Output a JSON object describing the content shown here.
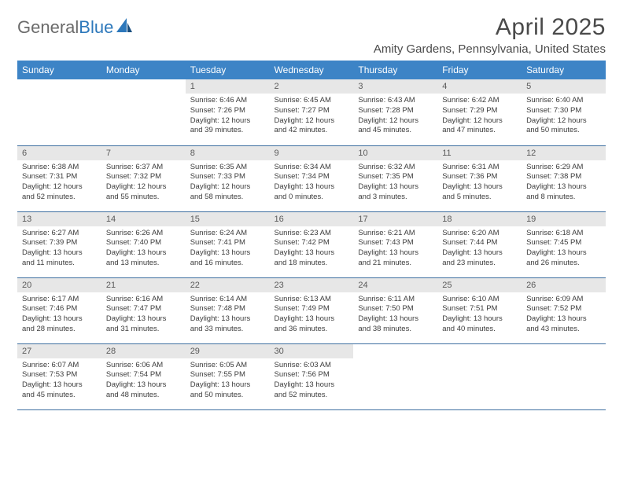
{
  "brand": {
    "part1": "General",
    "part2": "Blue"
  },
  "title": "April 2025",
  "location": "Amity Gardens, Pennsylvania, United States",
  "colors": {
    "header_bg": "#3d84c6",
    "header_fg": "#ffffff",
    "daynum_bg": "#e7e7e7",
    "row_border": "#3d6ea0",
    "text": "#3c3c3c"
  },
  "weekdays": [
    "Sunday",
    "Monday",
    "Tuesday",
    "Wednesday",
    "Thursday",
    "Friday",
    "Saturday"
  ],
  "cells": [
    {
      "n": "",
      "sr": "",
      "ss": "",
      "dl": "",
      "empty": true
    },
    {
      "n": "",
      "sr": "",
      "ss": "",
      "dl": "",
      "empty": true
    },
    {
      "n": "1",
      "sr": "Sunrise: 6:46 AM",
      "ss": "Sunset: 7:26 PM",
      "dl": "Daylight: 12 hours and 39 minutes."
    },
    {
      "n": "2",
      "sr": "Sunrise: 6:45 AM",
      "ss": "Sunset: 7:27 PM",
      "dl": "Daylight: 12 hours and 42 minutes."
    },
    {
      "n": "3",
      "sr": "Sunrise: 6:43 AM",
      "ss": "Sunset: 7:28 PM",
      "dl": "Daylight: 12 hours and 45 minutes."
    },
    {
      "n": "4",
      "sr": "Sunrise: 6:42 AM",
      "ss": "Sunset: 7:29 PM",
      "dl": "Daylight: 12 hours and 47 minutes."
    },
    {
      "n": "5",
      "sr": "Sunrise: 6:40 AM",
      "ss": "Sunset: 7:30 PM",
      "dl": "Daylight: 12 hours and 50 minutes."
    },
    {
      "n": "6",
      "sr": "Sunrise: 6:38 AM",
      "ss": "Sunset: 7:31 PM",
      "dl": "Daylight: 12 hours and 52 minutes."
    },
    {
      "n": "7",
      "sr": "Sunrise: 6:37 AM",
      "ss": "Sunset: 7:32 PM",
      "dl": "Daylight: 12 hours and 55 minutes."
    },
    {
      "n": "8",
      "sr": "Sunrise: 6:35 AM",
      "ss": "Sunset: 7:33 PM",
      "dl": "Daylight: 12 hours and 58 minutes."
    },
    {
      "n": "9",
      "sr": "Sunrise: 6:34 AM",
      "ss": "Sunset: 7:34 PM",
      "dl": "Daylight: 13 hours and 0 minutes."
    },
    {
      "n": "10",
      "sr": "Sunrise: 6:32 AM",
      "ss": "Sunset: 7:35 PM",
      "dl": "Daylight: 13 hours and 3 minutes."
    },
    {
      "n": "11",
      "sr": "Sunrise: 6:31 AM",
      "ss": "Sunset: 7:36 PM",
      "dl": "Daylight: 13 hours and 5 minutes."
    },
    {
      "n": "12",
      "sr": "Sunrise: 6:29 AM",
      "ss": "Sunset: 7:38 PM",
      "dl": "Daylight: 13 hours and 8 minutes."
    },
    {
      "n": "13",
      "sr": "Sunrise: 6:27 AM",
      "ss": "Sunset: 7:39 PM",
      "dl": "Daylight: 13 hours and 11 minutes."
    },
    {
      "n": "14",
      "sr": "Sunrise: 6:26 AM",
      "ss": "Sunset: 7:40 PM",
      "dl": "Daylight: 13 hours and 13 minutes."
    },
    {
      "n": "15",
      "sr": "Sunrise: 6:24 AM",
      "ss": "Sunset: 7:41 PM",
      "dl": "Daylight: 13 hours and 16 minutes."
    },
    {
      "n": "16",
      "sr": "Sunrise: 6:23 AM",
      "ss": "Sunset: 7:42 PM",
      "dl": "Daylight: 13 hours and 18 minutes."
    },
    {
      "n": "17",
      "sr": "Sunrise: 6:21 AM",
      "ss": "Sunset: 7:43 PM",
      "dl": "Daylight: 13 hours and 21 minutes."
    },
    {
      "n": "18",
      "sr": "Sunrise: 6:20 AM",
      "ss": "Sunset: 7:44 PM",
      "dl": "Daylight: 13 hours and 23 minutes."
    },
    {
      "n": "19",
      "sr": "Sunrise: 6:18 AM",
      "ss": "Sunset: 7:45 PM",
      "dl": "Daylight: 13 hours and 26 minutes."
    },
    {
      "n": "20",
      "sr": "Sunrise: 6:17 AM",
      "ss": "Sunset: 7:46 PM",
      "dl": "Daylight: 13 hours and 28 minutes."
    },
    {
      "n": "21",
      "sr": "Sunrise: 6:16 AM",
      "ss": "Sunset: 7:47 PM",
      "dl": "Daylight: 13 hours and 31 minutes."
    },
    {
      "n": "22",
      "sr": "Sunrise: 6:14 AM",
      "ss": "Sunset: 7:48 PM",
      "dl": "Daylight: 13 hours and 33 minutes."
    },
    {
      "n": "23",
      "sr": "Sunrise: 6:13 AM",
      "ss": "Sunset: 7:49 PM",
      "dl": "Daylight: 13 hours and 36 minutes."
    },
    {
      "n": "24",
      "sr": "Sunrise: 6:11 AM",
      "ss": "Sunset: 7:50 PM",
      "dl": "Daylight: 13 hours and 38 minutes."
    },
    {
      "n": "25",
      "sr": "Sunrise: 6:10 AM",
      "ss": "Sunset: 7:51 PM",
      "dl": "Daylight: 13 hours and 40 minutes."
    },
    {
      "n": "26",
      "sr": "Sunrise: 6:09 AM",
      "ss": "Sunset: 7:52 PM",
      "dl": "Daylight: 13 hours and 43 minutes."
    },
    {
      "n": "27",
      "sr": "Sunrise: 6:07 AM",
      "ss": "Sunset: 7:53 PM",
      "dl": "Daylight: 13 hours and 45 minutes."
    },
    {
      "n": "28",
      "sr": "Sunrise: 6:06 AM",
      "ss": "Sunset: 7:54 PM",
      "dl": "Daylight: 13 hours and 48 minutes."
    },
    {
      "n": "29",
      "sr": "Sunrise: 6:05 AM",
      "ss": "Sunset: 7:55 PM",
      "dl": "Daylight: 13 hours and 50 minutes."
    },
    {
      "n": "30",
      "sr": "Sunrise: 6:03 AM",
      "ss": "Sunset: 7:56 PM",
      "dl": "Daylight: 13 hours and 52 minutes."
    },
    {
      "n": "",
      "sr": "",
      "ss": "",
      "dl": "",
      "empty": true
    },
    {
      "n": "",
      "sr": "",
      "ss": "",
      "dl": "",
      "empty": true
    },
    {
      "n": "",
      "sr": "",
      "ss": "",
      "dl": "",
      "empty": true
    }
  ]
}
